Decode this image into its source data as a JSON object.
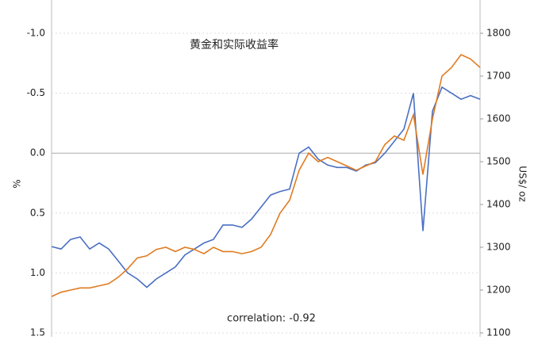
{
  "chart_data": {
    "type": "line",
    "title": "黄金和实际收益率",
    "annotation": "correlation: -0.92",
    "ylabel": "%",
    "y2label": "US$/ oz",
    "categories": [
      null,
      null,
      null,
      null,
      null,
      null,
      null,
      null,
      null,
      null,
      null,
      null,
      null,
      null,
      null,
      null,
      null,
      null,
      null,
      null,
      null,
      null,
      null,
      null,
      null,
      null,
      null,
      null,
      null,
      null,
      null,
      null,
      null,
      null,
      null,
      null,
      null,
      null,
      null,
      null,
      null,
      null,
      null,
      null,
      null,
      null
    ],
    "series": [
      {
        "name": "实际收益率",
        "color": "#4a6fc4",
        "values": [
          0.78,
          0.8,
          0.72,
          0.7,
          0.8,
          0.75,
          0.8,
          0.9,
          1.0,
          1.05,
          1.12,
          1.05,
          1.0,
          0.95,
          0.85,
          0.8,
          0.75,
          0.72,
          0.6,
          0.6,
          0.62,
          0.55,
          0.45,
          0.35,
          0.32,
          0.3,
          0.0,
          -0.05,
          0.05,
          0.1,
          0.12,
          0.12,
          0.15,
          0.1,
          0.08,
          0.0,
          -0.1,
          -0.2,
          -0.5,
          0.65,
          -0.35,
          -0.55,
          -0.5,
          -0.45,
          -0.48,
          -0.45
        ]
      },
      {
        "name": "黄金",
        "color": "#e07b20",
        "axis": "y2",
        "values": [
          1185,
          1195,
          1200,
          1205,
          1205,
          1210,
          1215,
          1230,
          1250,
          1275,
          1280,
          1295,
          1300,
          1290,
          1300,
          1295,
          1285,
          1300,
          1290,
          1290,
          1285,
          1290,
          1300,
          1330,
          1380,
          1410,
          1480,
          1520,
          1500,
          1510,
          1500,
          1490,
          1480,
          1490,
          1500,
          1540,
          1560,
          1550,
          1610,
          1470,
          1600,
          1700,
          1720,
          1750,
          1740,
          1720
        ]
      }
    ],
    "ylim": [
      1.5,
      -1
    ],
    "yticks": [
      {
        "value": -1,
        "label": "-1.0"
      },
      -0.5,
      {
        "value": 0,
        "label": "0.0"
      },
      0.5,
      {
        "value": 1,
        "label": "1.0"
      },
      1.5
    ],
    "y2lim": [
      1100,
      1800
    ],
    "y2ticks": [
      1100,
      1200,
      1300,
      1400,
      1500,
      1600,
      1700,
      1800
    ],
    "grid": true
  }
}
